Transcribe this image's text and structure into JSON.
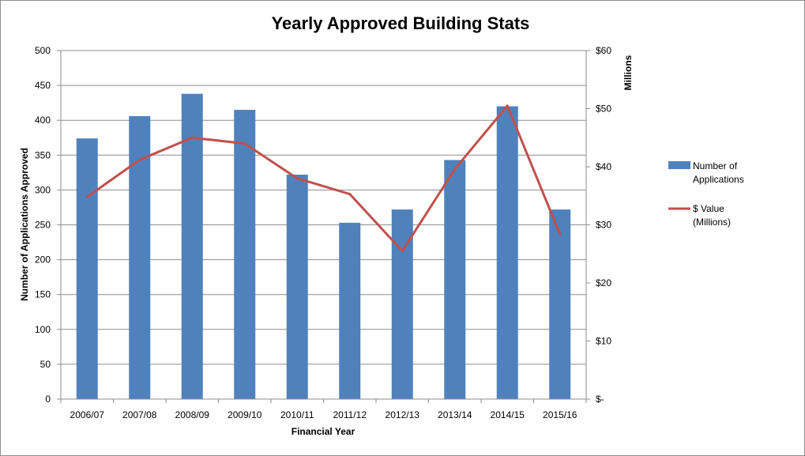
{
  "chart_data": {
    "type": "bar",
    "title": "Yearly Approved Building Stats",
    "xlabel": "Financial Year",
    "ylabel": "Number of Applications Approved",
    "y2label": "Millions",
    "categories": [
      "2006/07",
      "2007/08",
      "2008/09",
      "2009/10",
      "2010/11",
      "2011/12",
      "2012/13",
      "2013/14",
      "2014/15",
      "2015/16"
    ],
    "ylim": [
      0,
      500
    ],
    "yticks": [
      "0",
      "50",
      "100",
      "150",
      "200",
      "250",
      "300",
      "350",
      "400",
      "450",
      "500"
    ],
    "y2lim": [
      0,
      60
    ],
    "y2ticks": [
      "$-",
      "$10",
      "$20",
      "$30",
      "$40",
      "$50",
      "$60"
    ],
    "grid": true,
    "legend_position": "right",
    "series": [
      {
        "name": "Number of Applications",
        "kind": "bar",
        "axis": "left",
        "color": "#4f81bd",
        "values": [
          374,
          406,
          438,
          415,
          322,
          253,
          272,
          343,
          420,
          272
        ]
      },
      {
        "name": "$ Value (Millions)",
        "kind": "line",
        "axis": "right",
        "color": "#c0504d",
        "values": [
          34.8,
          41.2,
          45.0,
          44.0,
          38.0,
          35.3,
          25.5,
          39.6,
          50.5,
          28.4
        ]
      }
    ]
  }
}
